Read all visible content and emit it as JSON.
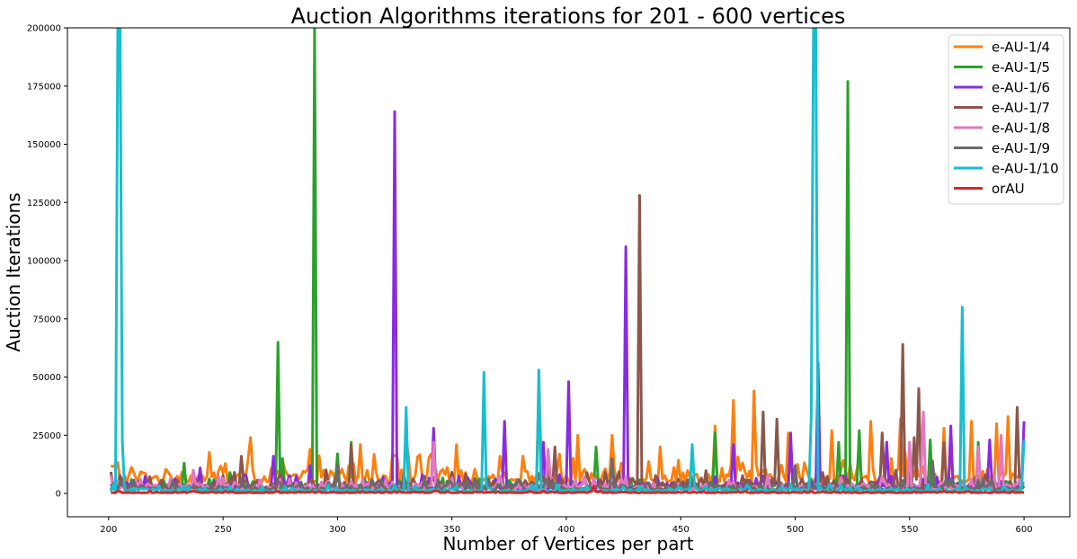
{
  "chart_data": {
    "type": "line",
    "title": "Auction Algorithms iterations for 201 - 600 vertices",
    "xlabel": "Number of Vertices per part",
    "ylabel": "Auction Iterations",
    "xlim": [
      182,
      620
    ],
    "ylim": [
      -10000,
      200000
    ],
    "xticks": [
      200,
      250,
      300,
      350,
      400,
      450,
      500,
      550,
      600
    ],
    "yticks": [
      0,
      25000,
      50000,
      75000,
      100000,
      125000,
      150000,
      175000,
      200000
    ],
    "x_range": [
      201,
      600
    ],
    "grid": false,
    "legend_position": "top-right",
    "series": [
      {
        "name": "e-AU-1/4",
        "color": "#ff7f0e",
        "base": 5000,
        "noise": 8000,
        "peaks": [
          [
            201,
            12000
          ],
          [
            262,
            24000
          ],
          [
            288,
            19000
          ],
          [
            310,
            21000
          ],
          [
            330,
            24000
          ],
          [
            352,
            21000
          ],
          [
            388,
            47000
          ],
          [
            405,
            25000
          ],
          [
            420,
            25000
          ],
          [
            441,
            20000
          ],
          [
            465,
            29000
          ],
          [
            473,
            40000
          ],
          [
            482,
            44000
          ],
          [
            497,
            26000
          ],
          [
            516,
            27000
          ],
          [
            533,
            31000
          ],
          [
            546,
            32000
          ],
          [
            565,
            28000
          ],
          [
            577,
            31000
          ],
          [
            588,
            30000
          ],
          [
            593,
            33000
          ],
          [
            600,
            23000
          ]
        ]
      },
      {
        "name": "e-AU-1/5",
        "color": "#2ca02c",
        "base": 2000,
        "noise": 3000,
        "peaks": [
          [
            210,
            6000
          ],
          [
            233,
            13000
          ],
          [
            253,
            9000
          ],
          [
            274,
            65000
          ],
          [
            276,
            15000
          ],
          [
            290,
            200000
          ],
          [
            300,
            17000
          ],
          [
            306,
            22000
          ],
          [
            413,
            20000
          ],
          [
            465,
            26000
          ],
          [
            519,
            22000
          ],
          [
            523,
            177000
          ],
          [
            528,
            27000
          ],
          [
            559,
            23000
          ],
          [
            580,
            22000
          ]
        ]
      },
      {
        "name": "e-AU-1/6",
        "color": "#8a2be2",
        "base": 2000,
        "noise": 4000,
        "peaks": [
          [
            240,
            11000
          ],
          [
            272,
            16000
          ],
          [
            288,
            12000
          ],
          [
            325,
            164000
          ],
          [
            342,
            28000
          ],
          [
            373,
            31000
          ],
          [
            390,
            22000
          ],
          [
            401,
            48000
          ],
          [
            426,
            106000
          ],
          [
            473,
            21000
          ],
          [
            498,
            26000
          ],
          [
            510,
            56000
          ],
          [
            540,
            22000
          ],
          [
            568,
            29000
          ],
          [
            585,
            23000
          ],
          [
            600,
            31000
          ]
        ]
      },
      {
        "name": "e-AU-1/7",
        "color": "#8c564b",
        "base": 2500,
        "noise": 5000,
        "peaks": [
          [
            258,
            16000
          ],
          [
            306,
            21000
          ],
          [
            395,
            20000
          ],
          [
            432,
            128000
          ],
          [
            486,
            35000
          ],
          [
            492,
            32000
          ],
          [
            538,
            26000
          ],
          [
            547,
            64000
          ],
          [
            552,
            24000
          ],
          [
            554,
            45000
          ],
          [
            565,
            22000
          ],
          [
            597,
            37000
          ]
        ]
      },
      {
        "name": "e-AU-1/8",
        "color": "#e377c2",
        "base": 1500,
        "noise": 4000,
        "peaks": [
          [
            237,
            10000
          ],
          [
            342,
            22000
          ],
          [
            392,
            19000
          ],
          [
            550,
            22000
          ],
          [
            556,
            35000
          ],
          [
            580,
            20000
          ],
          [
            590,
            25000
          ]
        ]
      },
      {
        "name": "e-AU-1/9",
        "color": "#6b6b6b",
        "base": 1500,
        "noise": 3000,
        "peaks": [
          [
            300,
            12000
          ],
          [
            420,
            15000
          ],
          [
            500,
            12000
          ],
          [
            560,
            14000
          ]
        ]
      },
      {
        "name": "e-AU-1/10",
        "color": "#17becf",
        "base": 800,
        "noise": 2000,
        "peaks": [
          [
            204,
            200000
          ],
          [
            205,
            200000
          ],
          [
            206,
            22000
          ],
          [
            330,
            37000
          ],
          [
            364,
            52000
          ],
          [
            388,
            53000
          ],
          [
            455,
            21000
          ],
          [
            508,
            200000
          ],
          [
            509,
            200000
          ],
          [
            507,
            33000
          ],
          [
            573,
            80000
          ],
          [
            600,
            23000
          ]
        ]
      },
      {
        "name": "orAU",
        "color": "#d62728",
        "base": 300,
        "noise": 500,
        "peaks": [
          [
            412,
            3000
          ]
        ]
      }
    ]
  }
}
